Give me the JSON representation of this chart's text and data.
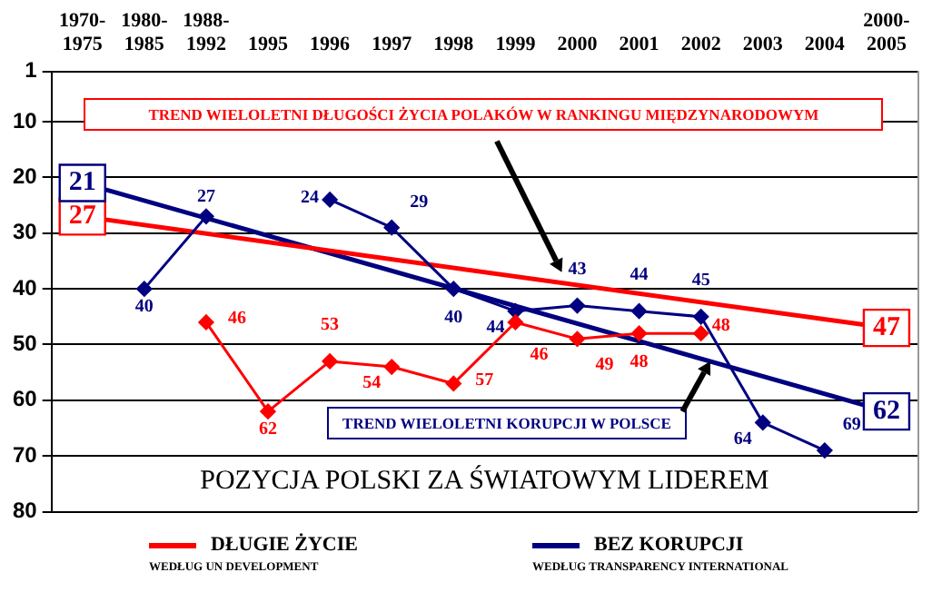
{
  "chart_data": {
    "type": "line",
    "categories": [
      "1970-1975",
      "1980-1985",
      "1988-1992",
      "1995",
      "1996",
      "1997",
      "1998",
      "1999",
      "2000",
      "2001",
      "2002",
      "2003",
      "2004",
      "2000-2005"
    ],
    "ylim": [
      80,
      1
    ],
    "yticks": [
      1,
      10,
      20,
      30,
      40,
      50,
      60,
      70,
      80
    ],
    "grid": "y",
    "legend": "bottom",
    "marker": "diamond",
    "data_labels": true,
    "series": [
      {
        "name": "DŁUGIE ŻYCIE",
        "color": "#ff0000",
        "values": [
          null,
          null,
          46,
          62,
          53,
          54,
          57,
          46,
          49,
          48,
          48,
          null,
          null,
          null
        ]
      },
      {
        "name": "BEZ KORUPCJI",
        "color": "#000080",
        "values": [
          null,
          40,
          27,
          null,
          24,
          29,
          40,
          44,
          43,
          44,
          45,
          64,
          69,
          null
        ]
      },
      {
        "color": "#ff0000",
        "x": [
          "1970-1975",
          "2000-2005"
        ],
        "values": [
          27,
          47
        ],
        "marker": "square"
      },
      {
        "color": "#000080",
        "x": [
          "1970-1975",
          "2000-2005"
        ],
        "values": [
          21,
          62
        ],
        "marker": "square"
      }
    ],
    "annotations": [
      "TREND WIELOLETNI DŁUGOŚCI ŻYCIA POLAKÓW W RANKINGU MIĘDZYNARODOWYM",
      "TREND WIELOLETNI KORUPCJI W POLSCE",
      "POZYCJA POLSKI ZA ŚWIATOWYM LIDEREM",
      "WEDŁUG UN DEVELOPMENT",
      "WEDŁUG TRANSPARENCY INTERNATIONAL"
    ]
  }
}
